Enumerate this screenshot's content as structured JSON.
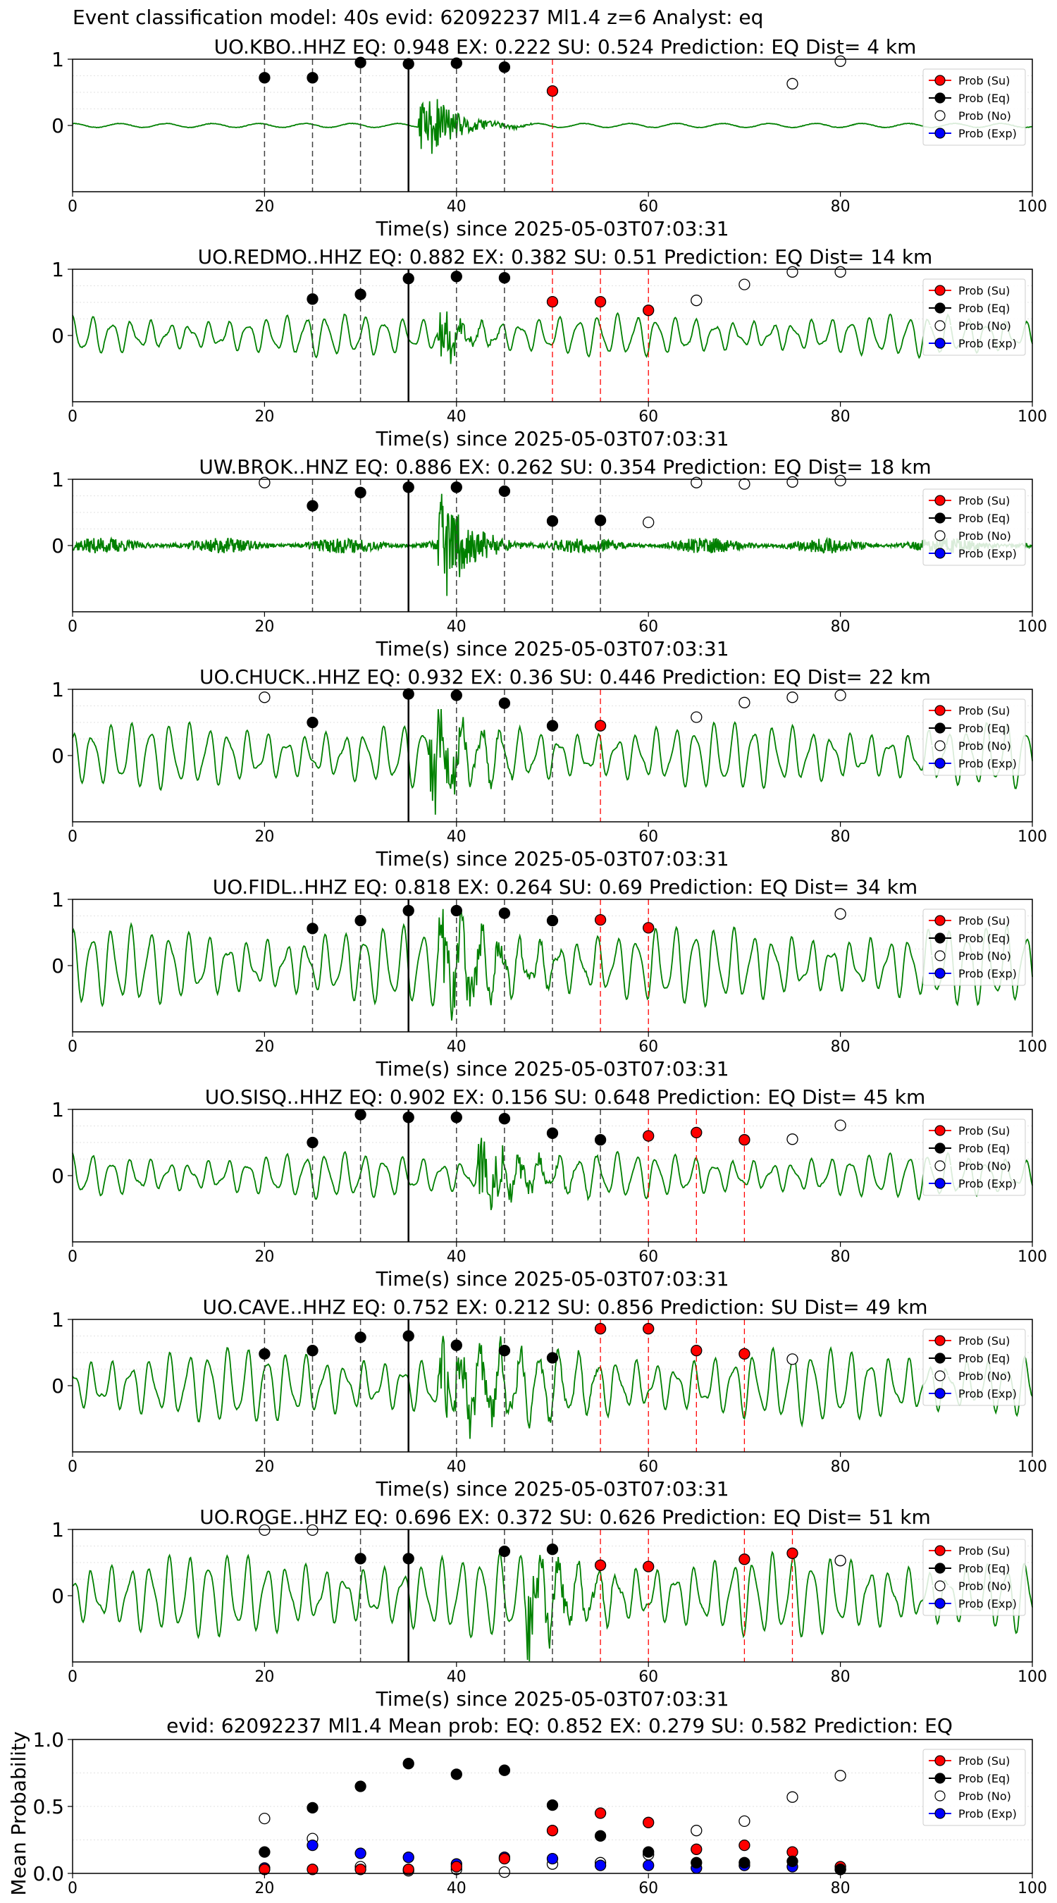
{
  "figure": {
    "suptitle": "Event classification model: 40s evid: 62092237 Ml1.4 z=6 Analyst: eq",
    "xlabel": "Time(s) since 2025-05-03T07:03:31",
    "legend_labels": [
      "Prob (Su)",
      "Prob (Eq)",
      "Prob (No)",
      "Prob (Exp)"
    ],
    "colors": {
      "waveform": "#008000",
      "su": "#ff0000",
      "eq": "#000000",
      "no": "#ffffff",
      "exp": "#0000ff",
      "origin_line": "#000000"
    }
  },
  "chart_data": [
    {
      "type": "line",
      "title": "UO.KBO..HHZ   EQ: 0.948  EX: 0.222  SU: 0.524   Prediction: EQ    Dist= 4 km",
      "xlabel": "Time(s) since 2025-05-03T07:03:31",
      "xlim": [
        0,
        100
      ],
      "x_ticks": [
        0,
        20,
        40,
        60,
        80,
        100
      ],
      "y_ticks": [
        0,
        1
      ],
      "origin_time": 35,
      "eq_points": [
        [
          20,
          0.72
        ],
        [
          25,
          0.72
        ],
        [
          30,
          0.95
        ],
        [
          35,
          0.93
        ],
        [
          40,
          0.94
        ],
        [
          45,
          0.88
        ]
      ],
      "su_points": [
        [
          50,
          0.52
        ]
      ],
      "no_points": [
        [
          75,
          0.63
        ],
        [
          80,
          0.97
        ]
      ],
      "exp_points": [],
      "waveform": {
        "style": "noise_event",
        "event_start": 36,
        "event_end": 48,
        "noise_amp": 0.03,
        "event_amp": 0.5,
        "seed": 11,
        "clip_top": true
      },
      "legend": "upper right"
    },
    {
      "type": "line",
      "title": "UO.REDMO..HHZ   EQ: 0.882  EX: 0.382  SU: 0.51   Prediction: EQ    Dist= 14 km",
      "xlabel": "Time(s) since 2025-05-03T07:03:31",
      "xlim": [
        0,
        100
      ],
      "x_ticks": [
        0,
        20,
        40,
        60,
        80,
        100
      ],
      "y_ticks": [
        0,
        1
      ],
      "origin_time": 35,
      "eq_points": [
        [
          25,
          0.55
        ],
        [
          30,
          0.62
        ],
        [
          35,
          0.86
        ],
        [
          40,
          0.89
        ],
        [
          45,
          0.87
        ]
      ],
      "su_points": [
        [
          50,
          0.51
        ],
        [
          55,
          0.51
        ],
        [
          60,
          0.38
        ]
      ],
      "no_points": [
        [
          65,
          0.53
        ],
        [
          70,
          0.77
        ],
        [
          75,
          0.96
        ],
        [
          80,
          0.96
        ]
      ],
      "exp_points": [],
      "waveform": {
        "style": "oscillatory",
        "event_start": 38,
        "event_end": 46,
        "noise_amp": 0.2,
        "event_amp": 0.35,
        "seed": 23,
        "clip_top": false
      },
      "legend": "upper right"
    },
    {
      "type": "line",
      "title": "UW.BROK..HNZ   EQ: 0.886  EX: 0.262  SU: 0.354   Prediction: EQ    Dist= 18 km",
      "xlabel": "Time(s) since 2025-05-03T07:03:31",
      "xlim": [
        0,
        100
      ],
      "x_ticks": [
        0,
        20,
        40,
        60,
        80,
        100
      ],
      "y_ticks": [
        0,
        1
      ],
      "origin_time": 35,
      "eq_points": [
        [
          25,
          0.6
        ],
        [
          30,
          0.8
        ],
        [
          35,
          0.88
        ],
        [
          40,
          0.88
        ],
        [
          45,
          0.82
        ],
        [
          50,
          0.37
        ],
        [
          55,
          0.38
        ]
      ],
      "su_points": [],
      "no_points": [
        [
          20,
          0.95
        ],
        [
          60,
          0.35
        ],
        [
          65,
          0.95
        ],
        [
          70,
          0.93
        ],
        [
          75,
          0.96
        ],
        [
          80,
          0.98
        ]
      ],
      "exp_points": [],
      "waveform": {
        "style": "broadband_noise",
        "event_start": 38,
        "event_end": 48,
        "noise_amp": 0.12,
        "event_amp": 0.75,
        "seed": 37,
        "clip_top": true
      },
      "legend": "upper right"
    },
    {
      "type": "line",
      "title": "UO.CHUCK..HHZ   EQ: 0.932  EX: 0.36  SU: 0.446   Prediction: EQ    Dist= 22 km",
      "xlabel": "Time(s) since 2025-05-03T07:03:31",
      "xlim": [
        0,
        100
      ],
      "x_ticks": [
        0,
        20,
        40,
        60,
        80,
        100
      ],
      "y_ticks": [
        0,
        1
      ],
      "origin_time": 35,
      "eq_points": [
        [
          25,
          0.5
        ],
        [
          35,
          0.93
        ],
        [
          40,
          0.91
        ],
        [
          45,
          0.79
        ],
        [
          50,
          0.45
        ]
      ],
      "su_points": [
        [
          55,
          0.45
        ]
      ],
      "no_points": [
        [
          20,
          0.88
        ],
        [
          65,
          0.58
        ],
        [
          70,
          0.8
        ],
        [
          75,
          0.88
        ],
        [
          80,
          0.91
        ]
      ],
      "exp_points": [],
      "waveform": {
        "style": "oscillatory",
        "event_start": 37,
        "event_end": 48,
        "noise_amp": 0.32,
        "event_amp": 0.55,
        "seed": 41,
        "clip_top": false
      },
      "legend": "upper right"
    },
    {
      "type": "line",
      "title": "UO.FIDL..HHZ   EQ: 0.818  EX: 0.264  SU: 0.69   Prediction: EQ    Dist= 34 km",
      "xlabel": "Time(s) since 2025-05-03T07:03:31",
      "xlim": [
        0,
        100
      ],
      "x_ticks": [
        0,
        20,
        40,
        60,
        80,
        100
      ],
      "y_ticks": [
        0,
        1
      ],
      "origin_time": 35,
      "eq_points": [
        [
          25,
          0.56
        ],
        [
          30,
          0.68
        ],
        [
          35,
          0.83
        ],
        [
          40,
          0.83
        ],
        [
          45,
          0.79
        ],
        [
          50,
          0.68
        ]
      ],
      "su_points": [
        [
          55,
          0.69
        ],
        [
          60,
          0.57
        ]
      ],
      "no_points": [
        [
          80,
          0.78
        ]
      ],
      "exp_points": [],
      "waveform": {
        "style": "oscillatory",
        "event_start": 38,
        "event_end": 55,
        "noise_amp": 0.38,
        "event_amp": 0.5,
        "seed": 53,
        "clip_top": true
      },
      "legend": "upper right"
    },
    {
      "type": "line",
      "title": "UO.SISQ..HHZ   EQ: 0.902  EX: 0.156  SU: 0.648   Prediction: EQ    Dist= 45 km",
      "xlabel": "Time(s) since 2025-05-03T07:03:31",
      "xlim": [
        0,
        100
      ],
      "x_ticks": [
        0,
        20,
        40,
        60,
        80,
        100
      ],
      "y_ticks": [
        0,
        1
      ],
      "origin_time": 35,
      "eq_points": [
        [
          25,
          0.5
        ],
        [
          30,
          0.92
        ],
        [
          35,
          0.88
        ],
        [
          40,
          0.88
        ],
        [
          45,
          0.86
        ],
        [
          50,
          0.64
        ],
        [
          55,
          0.54
        ]
      ],
      "su_points": [
        [
          60,
          0.6
        ],
        [
          65,
          0.65
        ],
        [
          70,
          0.54
        ]
      ],
      "no_points": [
        [
          75,
          0.55
        ],
        [
          80,
          0.76
        ]
      ],
      "exp_points": [],
      "waveform": {
        "style": "oscillatory",
        "event_start": 42,
        "event_end": 56,
        "noise_amp": 0.22,
        "event_amp": 0.45,
        "seed": 67,
        "clip_top": false
      },
      "legend": "upper right"
    },
    {
      "type": "line",
      "title": "UO.CAVE..HHZ   EQ: 0.752  EX: 0.212  SU: 0.856   Prediction: SU    Dist= 49 km",
      "xlabel": "Time(s) since 2025-05-03T07:03:31",
      "xlim": [
        0,
        100
      ],
      "x_ticks": [
        0,
        20,
        40,
        60,
        80,
        100
      ],
      "y_ticks": [
        0,
        1
      ],
      "origin_time": 35,
      "eq_points": [
        [
          20,
          0.48
        ],
        [
          25,
          0.53
        ],
        [
          30,
          0.73
        ],
        [
          35,
          0.75
        ],
        [
          40,
          0.61
        ],
        [
          45,
          0.53
        ],
        [
          50,
          0.42
        ]
      ],
      "su_points": [
        [
          55,
          0.86
        ],
        [
          60,
          0.86
        ],
        [
          65,
          0.53
        ],
        [
          70,
          0.48
        ]
      ],
      "no_points": [
        [
          75,
          0.4
        ]
      ],
      "exp_points": [],
      "waveform": {
        "style": "oscillatory",
        "event_start": 38,
        "event_end": 60,
        "noise_amp": 0.36,
        "event_amp": 0.45,
        "seed": 71,
        "clip_top": false
      },
      "legend": "upper right"
    },
    {
      "type": "line",
      "title": "UO.ROGE..HHZ   EQ: 0.696  EX: 0.372  SU: 0.626   Prediction: EQ    Dist= 51 km",
      "xlabel": "Time(s) since 2025-05-03T07:03:31",
      "xlim": [
        0,
        100
      ],
      "x_ticks": [
        0,
        20,
        40,
        60,
        80,
        100
      ],
      "y_ticks": [
        0,
        1
      ],
      "origin_time": 35,
      "eq_points": [
        [
          30,
          0.56
        ],
        [
          35,
          0.56
        ],
        [
          45,
          0.67
        ],
        [
          50,
          0.7
        ]
      ],
      "su_points": [
        [
          55,
          0.46
        ],
        [
          60,
          0.44
        ],
        [
          70,
          0.55
        ],
        [
          75,
          0.64
        ]
      ],
      "no_points": [
        [
          20,
          0.99
        ],
        [
          25,
          0.99
        ],
        [
          80,
          0.53
        ]
      ],
      "exp_points": [],
      "waveform": {
        "style": "oscillatory",
        "event_start": 47,
        "event_end": 60,
        "noise_amp": 0.4,
        "event_amp": 0.45,
        "seed": 83,
        "clip_top": true
      },
      "legend": "upper right"
    },
    {
      "type": "scatter",
      "title": "evid: 62092237  Ml1.4   Mean prob:    EQ: 0.852  EX: 0.279  SU: 0.582   Prediction: EQ",
      "ylabel": "Mean Probability",
      "xlim": [
        0,
        100
      ],
      "ylim": [
        0,
        1
      ],
      "x_ticks": [
        0,
        20,
        40,
        60,
        80,
        100
      ],
      "y_ticks": [
        "0.0",
        "0.5",
        "1.0"
      ],
      "series": [
        {
          "name": "Prob (Su)",
          "points": [
            [
              20,
              0.03
            ],
            [
              25,
              0.03
            ],
            [
              30,
              0.03
            ],
            [
              35,
              0.03
            ],
            [
              40,
              0.05
            ],
            [
              45,
              0.11
            ],
            [
              50,
              0.32
            ],
            [
              55,
              0.45
            ],
            [
              60,
              0.38
            ],
            [
              65,
              0.18
            ],
            [
              70,
              0.21
            ],
            [
              75,
              0.16
            ],
            [
              80,
              0.05
            ]
          ]
        },
        {
          "name": "Prob (Eq)",
          "points": [
            [
              20,
              0.16
            ],
            [
              25,
              0.49
            ],
            [
              30,
              0.65
            ],
            [
              35,
              0.82
            ],
            [
              40,
              0.74
            ],
            [
              45,
              0.77
            ],
            [
              50,
              0.51
            ],
            [
              55,
              0.28
            ],
            [
              60,
              0.16
            ],
            [
              65,
              0.08
            ],
            [
              70,
              0.08
            ],
            [
              75,
              0.09
            ],
            [
              80,
              0.03
            ]
          ]
        },
        {
          "name": "Prob (No)",
          "points": [
            [
              20,
              0.41
            ],
            [
              25,
              0.26
            ],
            [
              30,
              0.05
            ],
            [
              35,
              0.02
            ],
            [
              40,
              0.03
            ],
            [
              45,
              0.01
            ],
            [
              50,
              0.07
            ],
            [
              55,
              0.08
            ],
            [
              60,
              0.14
            ],
            [
              65,
              0.32
            ],
            [
              70,
              0.39
            ],
            [
              75,
              0.57
            ],
            [
              80,
              0.73
            ]
          ]
        },
        {
          "name": "Prob (Exp)",
          "points": [
            [
              20,
              0.04
            ],
            [
              25,
              0.21
            ],
            [
              30,
              0.15
            ],
            [
              35,
              0.12
            ],
            [
              40,
              0.07
            ],
            [
              45,
              0.12
            ],
            [
              50,
              0.11
            ],
            [
              55,
              0.06
            ],
            [
              60,
              0.06
            ],
            [
              65,
              0.04
            ],
            [
              70,
              0.06
            ],
            [
              75,
              0.05
            ],
            [
              80,
              0.03
            ]
          ]
        }
      ],
      "legend": "upper right"
    }
  ]
}
